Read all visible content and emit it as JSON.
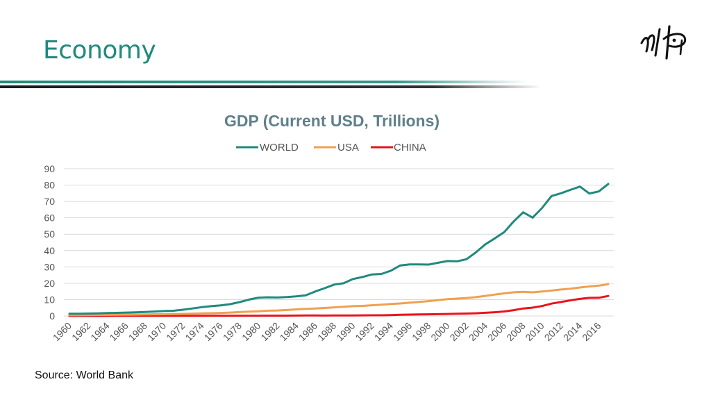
{
  "slide": {
    "title": "Economy",
    "source": "Source: World Bank"
  },
  "colors": {
    "title": "#1f8a7d",
    "world": "#1f8a7d",
    "usa": "#f0a050",
    "china": "#e8141c",
    "grid": "#d9d9d9",
    "axis_text": "#555555",
    "chart_title": "#5f7f8c"
  },
  "chart_data": {
    "type": "line",
    "title": "GDP (Current USD, Trillions)",
    "xlabel": "",
    "ylabel": "",
    "ylim": [
      0,
      90
    ],
    "yticks": [
      "0",
      "10",
      "20",
      "30",
      "40",
      "50",
      "60",
      "70",
      "80",
      "90"
    ],
    "grid": true,
    "legend_position": "top-center",
    "x": [
      1960,
      1961,
      1962,
      1963,
      1964,
      1965,
      1966,
      1967,
      1968,
      1969,
      1970,
      1971,
      1972,
      1973,
      1974,
      1975,
      1976,
      1977,
      1978,
      1979,
      1980,
      1981,
      1982,
      1983,
      1984,
      1985,
      1986,
      1987,
      1988,
      1989,
      1990,
      1991,
      1992,
      1993,
      1994,
      1995,
      1996,
      1997,
      1998,
      1999,
      2000,
      2001,
      2002,
      2003,
      2004,
      2005,
      2006,
      2007,
      2008,
      2009,
      2010,
      2011,
      2012,
      2013,
      2014,
      2015,
      2016,
      2017
    ],
    "xtick_labels": [
      "1960",
      "1962",
      "1964",
      "1966",
      "1968",
      "1970",
      "1972",
      "1974",
      "1976",
      "1978",
      "1980",
      "1982",
      "1984",
      "1986",
      "1988",
      "1990",
      "1992",
      "1994",
      "1996",
      "1998",
      "2000",
      "2002",
      "2004",
      "2006",
      "2008",
      "2010",
      "2012",
      "2014",
      "2016"
    ],
    "series": [
      {
        "name": "WORLD",
        "color": "#1f8a7d",
        "values": [
          1.4,
          1.4,
          1.5,
          1.6,
          1.8,
          1.9,
          2.1,
          2.2,
          2.4,
          2.7,
          3.0,
          3.2,
          3.8,
          4.6,
          5.4,
          6.0,
          6.5,
          7.2,
          8.5,
          10.0,
          11.2,
          11.4,
          11.3,
          11.6,
          12.0,
          12.6,
          15.0,
          17.0,
          19.2,
          20.0,
          22.6,
          23.8,
          25.4,
          25.7,
          27.7,
          30.9,
          31.5,
          31.5,
          31.4,
          32.5,
          33.6,
          33.4,
          34.7,
          38.9,
          43.8,
          47.4,
          51.3,
          57.8,
          63.4,
          60.1,
          66.0,
          73.3,
          75.0,
          77.1,
          79.1,
          74.9,
          76.1,
          80.7
        ]
      },
      {
        "name": "USA",
        "color": "#f0a050",
        "values": [
          0.54,
          0.56,
          0.6,
          0.64,
          0.69,
          0.74,
          0.81,
          0.86,
          0.94,
          1.02,
          1.07,
          1.16,
          1.28,
          1.43,
          1.55,
          1.69,
          1.88,
          2.09,
          2.36,
          2.63,
          2.86,
          3.21,
          3.34,
          3.64,
          4.04,
          4.35,
          4.59,
          4.87,
          5.25,
          5.66,
          5.98,
          6.17,
          6.54,
          6.88,
          7.31,
          7.66,
          8.1,
          8.61,
          9.09,
          9.66,
          10.28,
          10.62,
          10.98,
          11.51,
          12.27,
          13.09,
          13.86,
          14.48,
          14.72,
          14.42,
          14.96,
          15.52,
          16.16,
          16.69,
          17.39,
          18.04,
          18.57,
          19.39
        ]
      },
      {
        "name": "CHINA",
        "color": "#e8141c",
        "values": [
          0.06,
          0.05,
          0.05,
          0.05,
          0.06,
          0.07,
          0.08,
          0.07,
          0.07,
          0.08,
          0.09,
          0.1,
          0.11,
          0.14,
          0.14,
          0.16,
          0.15,
          0.17,
          0.15,
          0.18,
          0.19,
          0.2,
          0.21,
          0.23,
          0.26,
          0.31,
          0.3,
          0.27,
          0.31,
          0.35,
          0.36,
          0.38,
          0.43,
          0.44,
          0.56,
          0.73,
          0.86,
          0.96,
          1.03,
          1.09,
          1.21,
          1.34,
          1.47,
          1.66,
          1.96,
          2.29,
          2.75,
          3.55,
          4.59,
          5.1,
          6.09,
          7.55,
          8.53,
          9.57,
          10.44,
          11.06,
          11.14,
          12.24
        ]
      }
    ]
  }
}
